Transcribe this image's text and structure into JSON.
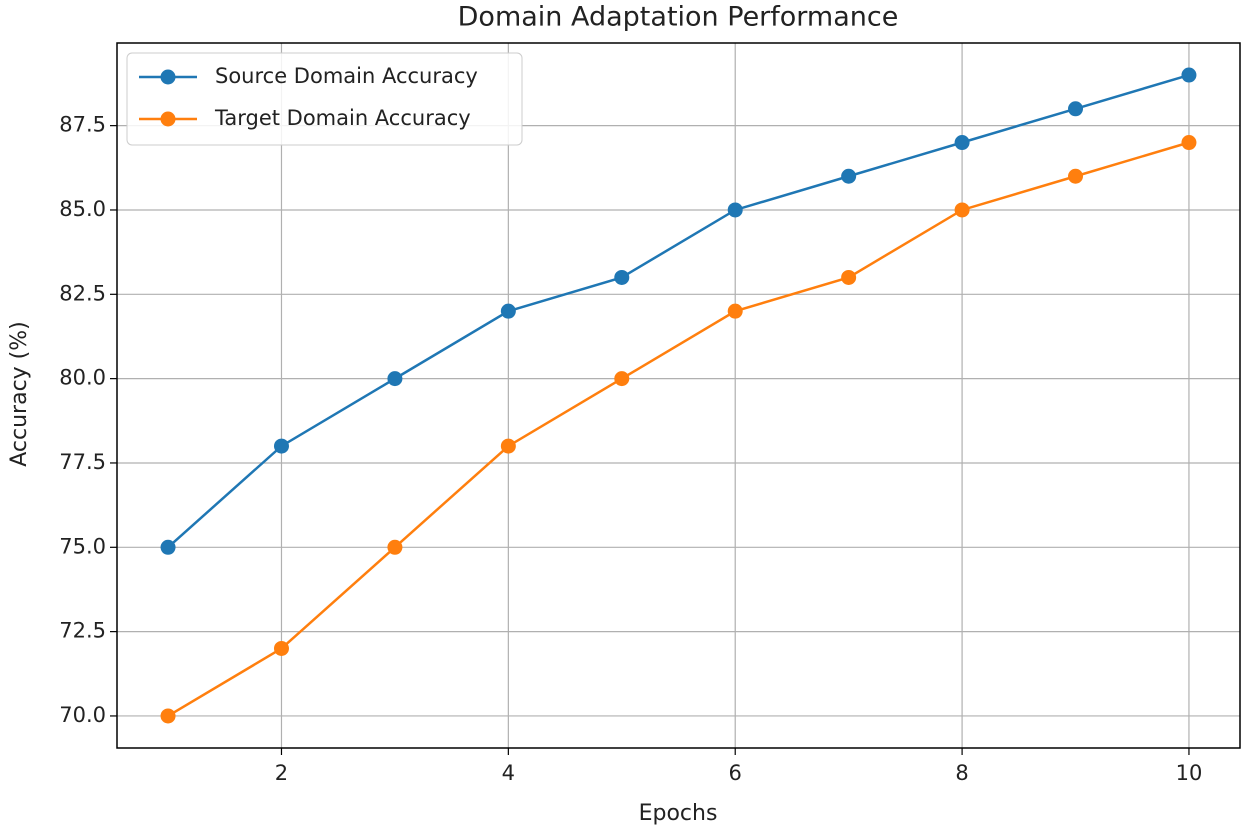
{
  "chart_data": {
    "type": "line",
    "title": "Domain Adaptation Performance",
    "x_label": "Epochs",
    "y_label": "Accuracy (%)",
    "x": [
      1,
      2,
      3,
      4,
      5,
      6,
      7,
      8,
      9,
      10
    ],
    "series": [
      {
        "name": "Source Domain Accuracy",
        "color": "#1f77b4",
        "values": [
          75,
          78,
          80,
          82,
          83,
          85,
          86,
          87,
          88,
          89
        ]
      },
      {
        "name": "Target Domain Accuracy",
        "color": "#ff7f0e",
        "values": [
          70,
          72,
          75,
          78,
          80,
          82,
          83,
          85,
          86,
          87
        ]
      }
    ],
    "xlim": [
      0.55,
      10.45
    ],
    "xticks": [
      2,
      4,
      6,
      8,
      10
    ],
    "ylim": [
      69.05,
      89.95
    ],
    "yticks": [
      {
        "value": 70,
        "label": "70.0"
      },
      72.5,
      {
        "value": 75,
        "label": "75.0"
      },
      77.5,
      {
        "value": 80,
        "label": "80.0"
      },
      82.5,
      {
        "value": 85,
        "label": "85.0"
      },
      87.5
    ],
    "grid": true,
    "legend": "upper left"
  }
}
